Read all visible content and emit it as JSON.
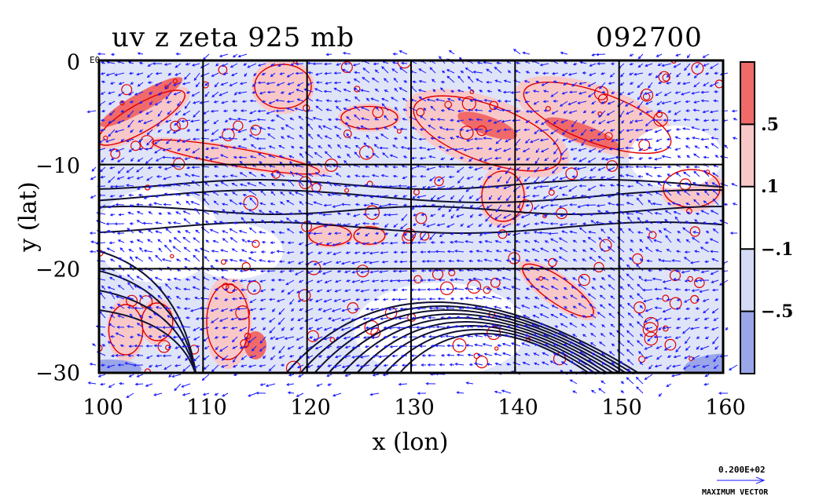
{
  "chart_data": {
    "type": "contour-vector-map",
    "title": "uv z zeta 925 mb",
    "timestamp": "092700",
    "xlabel": "x (lon)",
    "ylabel": "y (lat)",
    "xlim": [
      100,
      160
    ],
    "ylim": [
      -30,
      0
    ],
    "x_ticks": [
      "100",
      "110",
      "120",
      "130",
      "140",
      "150",
      "160"
    ],
    "x_tick_values": [
      100,
      110,
      120,
      130,
      140,
      150,
      160
    ],
    "y_ticks": [
      "0",
      "−10",
      "−20",
      "−30"
    ],
    "y_tick_values": [
      0,
      -10,
      -20,
      -30
    ],
    "y0_suffix": "E0",
    "grid": true,
    "colorbar": {
      "levels": [
        -0.5,
        -0.1,
        0.1,
        0.5
      ],
      "labels": [
        ".5",
        ".1",
        "−.1",
        "−.5"
      ],
      "bands": [
        {
          "range": "> .5",
          "color": "#f06a6a"
        },
        {
          "range": ".1 to .5",
          "color": "#f8c8c8"
        },
        {
          "range": "-.1 to .1",
          "color": "#ffffff"
        },
        {
          "range": "-.5 to -.1",
          "color": "#d5dbf5"
        },
        {
          "range": "< -.5",
          "color": "#9aa6e8"
        }
      ]
    },
    "vector_legend": {
      "value": "0.200E+02",
      "label": "MAXIMUM VECTOR",
      "color": "#1a1aff"
    },
    "colors": {
      "positive_line": "#e00000",
      "negative_fill": "#d5dbf5",
      "positive_fill": "#f8c8c8",
      "vector": "#1a1aff",
      "contour": "#000000"
    }
  }
}
